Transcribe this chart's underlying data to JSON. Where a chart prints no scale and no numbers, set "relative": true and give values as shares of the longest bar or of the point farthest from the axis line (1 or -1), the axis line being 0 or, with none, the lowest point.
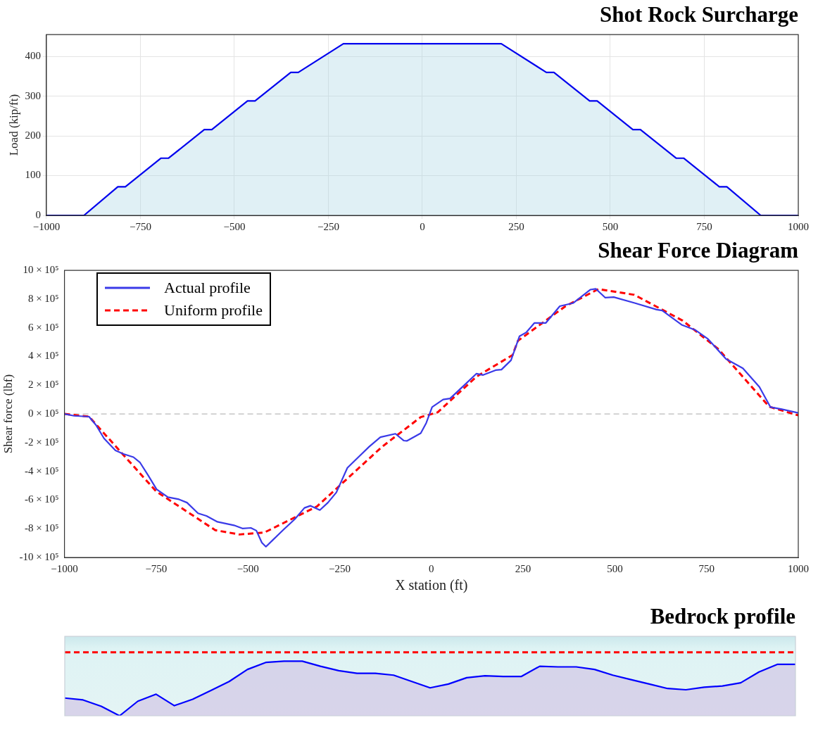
{
  "chart_data": [
    {
      "type": "area",
      "title": "Shot Rock Surcharge",
      "ylabel": "Load (kip/ft)",
      "x": [
        -1000,
        -900,
        -810,
        -790,
        -695,
        -675,
        -580,
        -560,
        -465,
        -445,
        -350,
        -330,
        -210,
        210,
        330,
        350,
        445,
        465,
        560,
        580,
        675,
        695,
        790,
        810,
        900,
        1000
      ],
      "series": [
        {
          "color": "#0000ee",
          "values": [
            0,
            0,
            72,
            72,
            144,
            144,
            216,
            216,
            288,
            288,
            360,
            360,
            432,
            432,
            360,
            360,
            288,
            288,
            216,
            216,
            144,
            144,
            72,
            72,
            0,
            0
          ]
        }
      ],
      "xlim": [
        -1000,
        1000
      ],
      "ylim": [
        0,
        455
      ],
      "xticks": [
        {
          "value": -1000,
          "label": "−1000"
        },
        {
          "value": -750,
          "label": "−750"
        },
        {
          "value": -500,
          "label": "−500"
        },
        {
          "value": -250,
          "label": "−250"
        },
        0,
        250,
        500,
        750,
        1000
      ],
      "yticks": [
        0,
        100,
        200,
        300,
        400
      ],
      "grid": true
    },
    {
      "type": "line",
      "title": "Shear Force Diagram",
      "xlabel": "X station (ft)",
      "ylabel": "Shear force (lbf)",
      "series": [
        {
          "name": "Actual profile",
          "color": "#3a3ae8",
          "line_style": "solid",
          "x": [
            -1000,
            -974,
            -933,
            -914,
            -892,
            -861,
            -839,
            -812,
            -794,
            -771,
            -749,
            -718,
            -688,
            -666,
            -636,
            -613,
            -583,
            -538,
            -515,
            -492,
            -477,
            -462,
            -451,
            -432,
            -402,
            -372,
            -346,
            -330,
            -304,
            -282,
            -259,
            -229,
            -199,
            -169,
            -139,
            -98,
            -75,
            -67,
            -29,
            -14,
            2,
            32,
            51,
            92,
            123,
            141,
            175,
            191,
            217,
            240,
            259,
            281,
            312,
            350,
            387,
            433,
            448,
            474,
            497,
            554,
            614,
            629,
            682,
            720,
            754,
            803,
            849,
            894,
            924,
            955,
            1000
          ],
          "values": [
            0,
            -13000,
            -19000,
            -78000,
            -171000,
            -255000,
            -279000,
            -301000,
            -339000,
            -432000,
            -525000,
            -580000,
            -595000,
            -618000,
            -692000,
            -711000,
            -752000,
            -776000,
            -798000,
            -794000,
            -813000,
            -897000,
            -925000,
            -878000,
            -804000,
            -733000,
            -655000,
            -640000,
            -670000,
            -618000,
            -547000,
            -376000,
            -301000,
            -227000,
            -162000,
            -138000,
            -186000,
            -188000,
            -134000,
            -63000,
            48000,
            100000,
            108000,
            206000,
            281000,
            271000,
            305000,
            309000,
            374000,
            541000,
            569000,
            634000,
            634000,
            751000,
            773000,
            866000,
            872000,
            810000,
            814000,
            773000,
            727000,
            721000,
            621000,
            584000,
            522000,
            383000,
            318000,
            188000,
            48000,
            33000,
            7000
          ]
        },
        {
          "name": "Uniform profile",
          "color": "#ff0000",
          "line_style": "dashed",
          "x": [
            -1000,
            -933,
            -750,
            -589,
            -523,
            -455,
            -312,
            -135,
            -29,
            17,
            123,
            221,
            236,
            365,
            455,
            553,
            685,
            783,
            921,
            1000
          ],
          "values": [
            0,
            -19000,
            -540000,
            -810000,
            -840000,
            -826000,
            -645000,
            -230000,
            -22000,
            11000,
            260000,
            410000,
            510000,
            750000,
            870000,
            830000,
            650000,
            450000,
            50000,
            -10000
          ]
        }
      ],
      "xlim": [
        -1000,
        1000
      ],
      "ylim": [
        -1000000,
        1000000
      ],
      "xticks": [
        {
          "value": -1000,
          "label": "−1000"
        },
        {
          "value": -750,
          "label": "−750"
        },
        {
          "value": -500,
          "label": "−500"
        },
        {
          "value": -250,
          "label": "−250"
        },
        0,
        250,
        500,
        750,
        1000
      ],
      "yticks": [
        {
          "value": -1000000,
          "label": "-10 × 10⁵"
        },
        {
          "value": -800000,
          "label": "-8 × 10⁵"
        },
        {
          "value": -600000,
          "label": "-6 × 10⁵"
        },
        {
          "value": -400000,
          "label": "-4 × 10⁵"
        },
        {
          "value": -200000,
          "label": "-2 × 10⁵"
        },
        {
          "value": 0,
          "label": "0 × 10⁵"
        },
        {
          "value": 200000,
          "label": "2 × 10⁵"
        },
        {
          "value": 400000,
          "label": "4 × 10⁵"
        },
        {
          "value": 600000,
          "label": "6 × 10⁵"
        },
        {
          "value": 800000,
          "label": "8 × 10⁵"
        },
        {
          "value": 1000000,
          "label": "10 × 10⁵"
        }
      ],
      "ref_lines": [
        {
          "axis": "y",
          "value": 0,
          "color": "#bbbbbb",
          "line_style": "dashed"
        }
      ],
      "legend": "top left"
    },
    {
      "type": "line",
      "title": "Bedrock profile",
      "relative": true,
      "tick_labels": false,
      "series": [
        {
          "color": "#0000ff",
          "line_style": "solid",
          "values": [
            0.28,
            0.25,
            0.15,
            0,
            0.23,
            0.34,
            0.16,
            0.26,
            0.4,
            0.54,
            0.73,
            0.84,
            0.86,
            0.86,
            0.78,
            0.71,
            0.67,
            0.67,
            0.64,
            0.54,
            0.44,
            0.5,
            0.6,
            0.63,
            0.62,
            0.62,
            0.78,
            0.77,
            0.77,
            0.73,
            0.64,
            0.57,
            0.5,
            0.43,
            0.41,
            0.45,
            0.47,
            0.52,
            0.69,
            0.81,
            0.81
          ]
        },
        {
          "color": "#ff0000",
          "line_style": "dashed",
          "values": [
            1,
            1,
            1,
            1,
            1,
            1,
            1,
            1,
            1,
            1,
            1,
            1,
            1,
            1,
            1,
            1,
            1,
            1,
            1,
            1,
            1,
            1,
            1,
            1,
            1,
            1,
            1,
            1,
            1,
            1,
            1,
            1,
            1,
            1,
            1,
            1,
            1,
            1,
            1,
            1,
            1
          ]
        }
      ],
      "categories": [
        null,
        null,
        null,
        null,
        null,
        null,
        null,
        null,
        null,
        null,
        null,
        null,
        null,
        null,
        null,
        null,
        null,
        null,
        null,
        null,
        null,
        null,
        null,
        null,
        null,
        null,
        null,
        null,
        null,
        null,
        null,
        null,
        null,
        null,
        null,
        null,
        null,
        null,
        null,
        null,
        null
      ]
    }
  ]
}
